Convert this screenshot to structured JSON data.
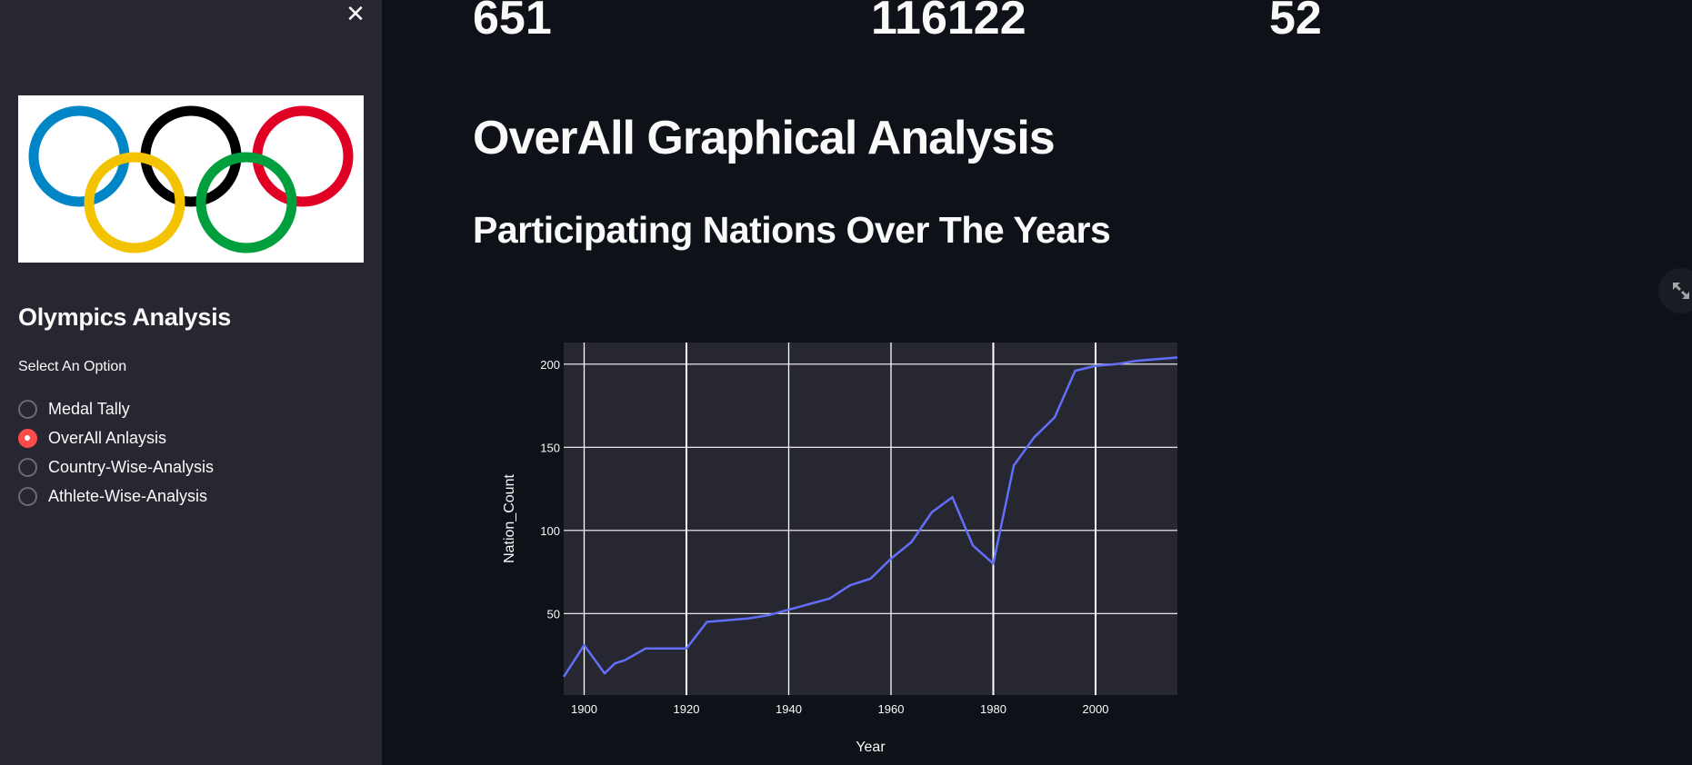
{
  "sidebar": {
    "close_icon": "close-icon",
    "logo": "olympic-rings-logo",
    "title": "Olympics Analysis",
    "radio_label": "Select An Option",
    "options": [
      {
        "label": "Medal Tally",
        "checked": false
      },
      {
        "label": "OverAll Anlaysis",
        "checked": true
      },
      {
        "label": "Country-Wise-Analysis",
        "checked": false
      },
      {
        "label": "Athlete-Wise-Analysis",
        "checked": false
      }
    ]
  },
  "main": {
    "metrics": [
      {
        "value": "651"
      },
      {
        "value": "116122"
      },
      {
        "value": "52"
      }
    ],
    "title": "OverAll Graphical Analysis",
    "subtitle": "Participating Nations Over The Years",
    "expand_icon": "fullscreen-expand-icon"
  },
  "colors": {
    "app_bg": "#0e1117",
    "sidebar_bg": "#262730",
    "plot_bg": "#262730",
    "line": "#636efa",
    "accent": "#ff4b4b",
    "grid": "#ffffff"
  },
  "chart_data": {
    "type": "line",
    "title": "",
    "xlabel": "Year",
    "ylabel": "Nation_Count",
    "x": [
      1896,
      1900,
      1904,
      1906,
      1908,
      1912,
      1920,
      1924,
      1928,
      1932,
      1936,
      1948,
      1952,
      1956,
      1960,
      1964,
      1968,
      1972,
      1976,
      1980,
      1984,
      1988,
      1992,
      1996,
      2000,
      2004,
      2008,
      2012,
      2016
    ],
    "series": [
      {
        "name": "Nation_Count",
        "values": [
          12,
          31,
          14,
          20,
          22,
          29,
          29,
          45,
          46,
          47,
          49,
          59,
          67,
          71,
          83,
          93,
          111,
          120,
          91,
          80,
          139,
          156,
          168,
          196,
          199,
          200,
          202,
          203,
          204
        ]
      }
    ],
    "xlim": [
      1896,
      2016
    ],
    "ylim": [
      1,
      213
    ],
    "x_ticks": [
      1900,
      1920,
      1940,
      1960,
      1980,
      2000
    ],
    "y_ticks": [
      50,
      100,
      150,
      200
    ],
    "grid": true,
    "legend": "none"
  }
}
